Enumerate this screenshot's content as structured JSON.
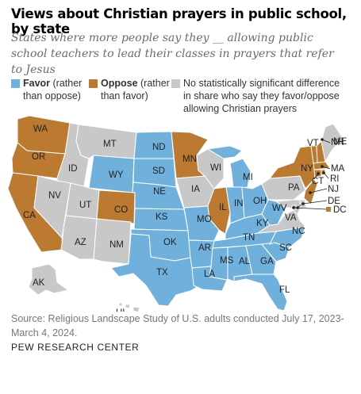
{
  "title": "Views about Christian prayers in public school, by state",
  "subtitle": "States where more people say they __ allowing public school teachers to lead their classes in prayers that refer to Jesus",
  "colors": {
    "favor": "#6fb1dc",
    "oppose": "#bb7a2f",
    "ns": "#c8c8c8"
  },
  "legend": {
    "favor": {
      "bold": "Favor",
      "rest": " (rather than oppose)"
    },
    "oppose": {
      "bold": "Oppose",
      "rest": " (rather than favor)"
    },
    "ns": {
      "text": "No statistically significant difference in share who say they favor/oppose allowing Christian prayers"
    }
  },
  "states": {
    "WA": "oppose",
    "OR": "oppose",
    "CA": "oppose",
    "ID": "ns",
    "NV": "ns",
    "UT": "ns",
    "AZ": "ns",
    "MT": "ns",
    "WY": "favor",
    "CO": "oppose",
    "NM": "ns",
    "ND": "favor",
    "SD": "favor",
    "NE": "favor",
    "KS": "favor",
    "OK": "favor",
    "TX": "favor",
    "MN": "oppose",
    "IA": "ns",
    "MO": "favor",
    "AR": "favor",
    "LA": "favor",
    "WI": "ns",
    "IL": "oppose",
    "MI": "favor",
    "IN": "favor",
    "OH": "favor",
    "KY": "favor",
    "TN": "favor",
    "MS": "favor",
    "AL": "favor",
    "GA": "favor",
    "FL": "favor",
    "SC": "favor",
    "NC": "favor",
    "VA": "ns",
    "WV": "favor",
    "PA": "ns",
    "NY": "oppose",
    "VT": "oppose",
    "NH": "oppose",
    "ME": "ns",
    "MA": "oppose",
    "RI": "oppose",
    "CT": "oppose",
    "NJ": "oppose",
    "DE": "ns",
    "MD": "ns",
    "DC": "oppose",
    "AK": "ns",
    "HI": "ns"
  },
  "source": "Source: Religious Landscape Study of U.S. adults conducted July 17, 2023-March 4, 2024.",
  "credit": "PEW RESEARCH CENTER"
}
